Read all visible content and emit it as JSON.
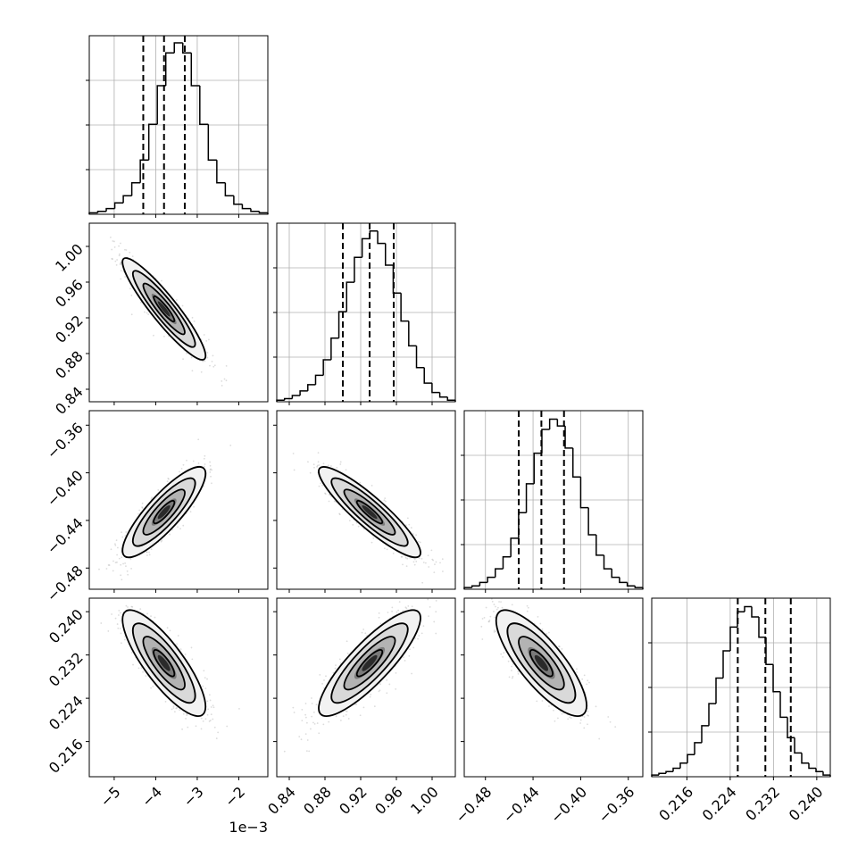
{
  "chart_data": {
    "type": "corner",
    "parameters": [
      {
        "range": [
          -5.6,
          -1.3
        ],
        "median": -3.8,
        "q16": -4.3,
        "q84": -3.3,
        "display_ticks": [
          -5,
          -4,
          -3,
          -2
        ],
        "tick_labels": [
          "−5",
          "−4",
          "−3",
          "−2"
        ],
        "offset_text": "1e−3",
        "hist_values": [
          1,
          2,
          4,
          8,
          13,
          22,
          38,
          63,
          90,
          113,
          120,
          113,
          90,
          63,
          38,
          22,
          13,
          7,
          4,
          2,
          1
        ],
        "hist_ylim": [
          0,
          125
        ]
      },
      {
        "range": [
          0.826,
          1.026
        ],
        "median": 0.93,
        "q16": 0.9,
        "q84": 0.957,
        "display_ticks": [
          0.84,
          0.88,
          0.92,
          0.96,
          1.0
        ],
        "tick_labels": [
          "0.84",
          "0.88",
          "0.92",
          "0.96",
          "1.00"
        ],
        "hist_values": [
          1,
          2,
          4,
          7,
          11,
          17,
          27,
          41,
          58,
          77,
          93,
          105,
          110,
          102,
          88,
          70,
          52,
          36,
          22,
          12,
          6,
          3,
          1
        ],
        "hist_ylim": [
          0,
          115
        ]
      },
      {
        "range": [
          -0.4978,
          -0.3478
        ],
        "median": -0.433,
        "q16": -0.452,
        "q84": -0.414,
        "display_ticks": [
          -0.48,
          -0.44,
          -0.4,
          -0.36
        ],
        "tick_labels": [
          "−0.48",
          "−0.44",
          "−0.40",
          "−0.36"
        ],
        "hist_values": [
          1,
          2,
          4,
          7,
          12,
          19,
          30,
          45,
          62,
          80,
          94,
          100,
          96,
          83,
          66,
          48,
          32,
          20,
          12,
          7,
          4,
          2,
          1
        ],
        "hist_ylim": [
          0,
          105
        ]
      },
      {
        "range": [
          0.2095,
          0.2425
        ],
        "median": 0.2305,
        "q16": 0.2254,
        "q84": 0.2352,
        "display_ticks": [
          0.216,
          0.224,
          0.232,
          0.24
        ],
        "tick_labels": [
          "0.216",
          "0.224",
          "0.232",
          "0.240"
        ],
        "hist_values": [
          1,
          2,
          3,
          5,
          8,
          13,
          20,
          30,
          43,
          58,
          74,
          88,
          97,
          100,
          94,
          82,
          66,
          50,
          35,
          23,
          14,
          8,
          5,
          3,
          1
        ],
        "hist_ylim": [
          0,
          105
        ]
      }
    ],
    "correlations": [
      [
        1.0,
        -0.92,
        0.85,
        -0.82
      ],
      [
        -0.92,
        1.0,
        -0.9,
        0.85
      ],
      [
        0.85,
        -0.9,
        1.0,
        -0.8
      ],
      [
        -0.82,
        0.85,
        -0.8,
        1.0
      ]
    ],
    "contour_sigma_levels": [
      0.5,
      1.0,
      1.5,
      2.0
    ]
  }
}
